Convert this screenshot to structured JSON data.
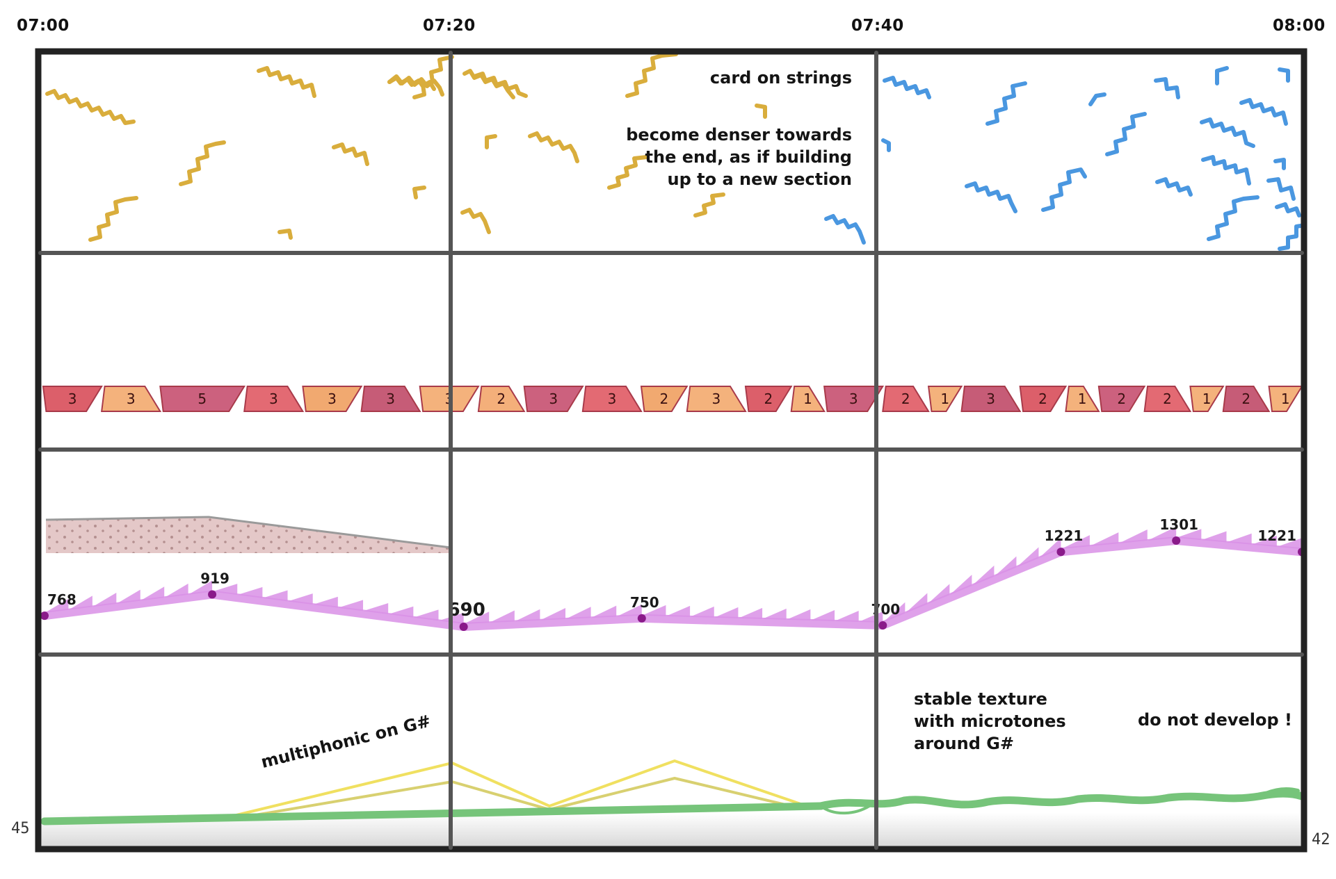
{
  "timeline": {
    "labels": [
      "07:00",
      "07:20",
      "07:40",
      "08:00"
    ]
  },
  "notes": {
    "card_on_strings": "card on strings",
    "denser": [
      "become denser towards",
      "the end, as if building",
      "up to a new section"
    ],
    "multiphonic": "multiphonic on G#",
    "stable_texture": [
      "stable texture",
      "with microtones",
      "around G#"
    ],
    "do_not_develop": "do not develop !"
  },
  "corners": {
    "left_value": "45",
    "right_value": "42"
  },
  "segments": {
    "numbers": [
      "3",
      "3",
      "5",
      "3",
      "3",
      "3",
      "3",
      "2",
      "3",
      "3",
      "2",
      "3",
      "2",
      "1",
      "3",
      "2",
      "1",
      "3",
      "2",
      "1",
      "2",
      "2",
      "1",
      "2",
      "1"
    ]
  },
  "frequency_line": {
    "points": [
      {
        "time_min": 0,
        "value": 768,
        "label": "768"
      },
      {
        "time_min": 8,
        "value": 919,
        "label": "919"
      },
      {
        "time_min": 20,
        "value": 690,
        "label": "690"
      },
      {
        "time_min": 28.5,
        "value": 750,
        "label": "750"
      },
      {
        "time_min": 40,
        "value": 700,
        "label": "700"
      },
      {
        "time_min": 48.5,
        "value": 1221,
        "label": "1221"
      },
      {
        "time_min": 54,
        "value": 1301,
        "label": "1301"
      },
      {
        "time_min": 60,
        "value": 1221,
        "label": "1221"
      }
    ]
  },
  "colors": {
    "frame": "#222222",
    "yellow_marks": "#d9ad3c",
    "blue_marks": "#4a97e0",
    "freq_line": "#d990e6",
    "freq_point": "#8a1a8a",
    "green_line": "#76c47a",
    "multiphonic_yellow": "#f0e060"
  }
}
